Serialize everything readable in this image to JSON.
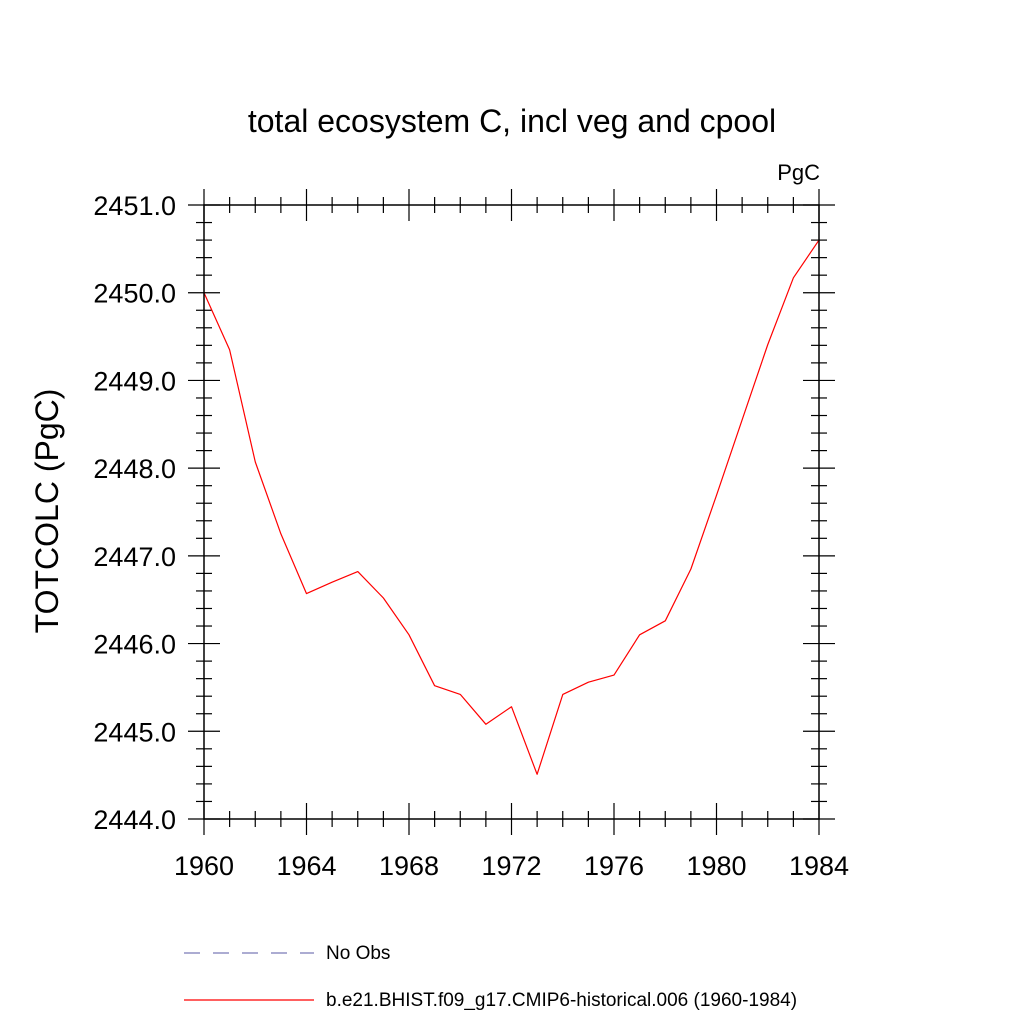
{
  "chart_data": {
    "type": "line",
    "title": "total ecosystem C, incl veg and cpool",
    "units_label": "PgC",
    "xlabel": "",
    "ylabel": "TOTCOLC  (PgC)",
    "xlim": [
      1960,
      1984
    ],
    "ylim": [
      2444.0,
      2451.0
    ],
    "x_ticks": [
      1960,
      1964,
      1968,
      1972,
      1976,
      1980,
      1984
    ],
    "x_tick_labels": [
      "1960",
      "1964",
      "1968",
      "1972",
      "1976",
      "1980",
      "1984"
    ],
    "y_ticks": [
      2444.0,
      2445.0,
      2446.0,
      2447.0,
      2448.0,
      2449.0,
      2450.0,
      2451.0
    ],
    "y_tick_labels": [
      "2444.0",
      "2445.0",
      "2446.0",
      "2447.0",
      "2448.0",
      "2449.0",
      "2450.0",
      "2451.0"
    ],
    "series": [
      {
        "name": "b.e21.BHIST.f09_g17.CMIP6-historical.006 (1960-1984)",
        "color": "#ff0000",
        "style": "solid",
        "x": [
          1960,
          1961,
          1962,
          1963,
          1964,
          1965,
          1966,
          1967,
          1968,
          1969,
          1970,
          1971,
          1972,
          1973,
          1974,
          1975,
          1976,
          1977,
          1978,
          1979,
          1980,
          1981,
          1982,
          1983,
          1984
        ],
        "values": [
          2450.0,
          2449.35,
          2448.07,
          2447.25,
          2446.57,
          2446.7,
          2446.82,
          2446.52,
          2446.1,
          2445.52,
          2445.42,
          2445.08,
          2445.28,
          2444.51,
          2445.42,
          2445.56,
          2445.64,
          2446.1,
          2446.26,
          2446.85,
          2447.69,
          2448.55,
          2449.41,
          2450.17,
          2450.6
        ]
      }
    ],
    "legend": [
      {
        "label": "No Obs",
        "style": "dashed",
        "color": "#7a7ab8"
      },
      {
        "label": "b.e21.BHIST.f09_g17.CMIP6-historical.006 (1960-1984)",
        "style": "solid",
        "color": "#ff0000"
      }
    ],
    "legend_position": "bottom-center",
    "grid": false
  }
}
